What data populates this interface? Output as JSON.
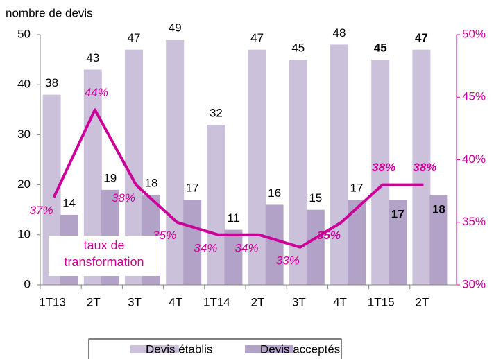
{
  "chart_data": {
    "type": "bar",
    "y_label": "nombre de devis",
    "annotation": "taux de transformation",
    "categories": [
      "1T13",
      "2T",
      "3T",
      "4T",
      "1T14",
      "2T",
      "3T",
      "4T",
      "1T15",
      "2T"
    ],
    "series": [
      {
        "name": "Devis établis",
        "color": "#ccc1da",
        "values": [
          38,
          43,
          47,
          49,
          32,
          47,
          45,
          48,
          45,
          47
        ]
      },
      {
        "name": "Devis acceptés",
        "color": "#b3a2c7",
        "values": [
          14,
          19,
          18,
          17,
          11,
          16,
          15,
          17,
          17,
          18
        ]
      },
      {
        "type": "line",
        "axis": "y2",
        "color": "#cc0099",
        "values": [
          37,
          44,
          38,
          35,
          34,
          34,
          33,
          35,
          38,
          38
        ],
        "value_labels": [
          "37%",
          "44%",
          "38%",
          "35%",
          "34%",
          "34%",
          "33%",
          "35%",
          "38%",
          "38%"
        ]
      }
    ],
    "ylim": [
      0,
      50
    ],
    "yticks": [
      0,
      10,
      20,
      30,
      40,
      50
    ],
    "y2lim": [
      30,
      50
    ],
    "y2ticks": [
      {
        "value": 30,
        "label": "30%"
      },
      {
        "value": 35,
        "label": "35%"
      },
      {
        "value": 40,
        "label": "40%"
      },
      {
        "value": 45,
        "label": "45%"
      },
      {
        "value": 50,
        "label": "50%"
      }
    ],
    "legend": "bottom"
  }
}
